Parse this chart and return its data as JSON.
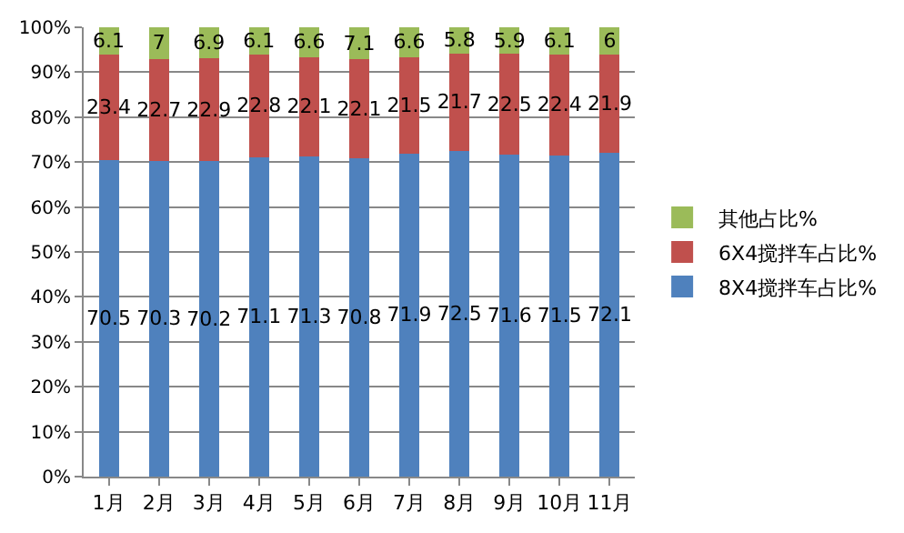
{
  "chart_data": {
    "type": "bar",
    "stacked": true,
    "categories": [
      "1月",
      "2月",
      "3月",
      "4月",
      "5月",
      "6月",
      "7月",
      "8月",
      "9月",
      "10月",
      "11月"
    ],
    "series": [
      {
        "name": "8X4搅拌车占比%",
        "color": "#4f81bd",
        "values": [
          70.5,
          70.3,
          70.2,
          71.1,
          71.3,
          70.8,
          71.9,
          72.5,
          71.6,
          71.5,
          72.1
        ]
      },
      {
        "name": "6X4搅拌车占比%",
        "color": "#c0504d",
        "values": [
          23.4,
          22.7,
          22.9,
          22.8,
          22.1,
          22.1,
          21.5,
          21.7,
          22.5,
          22.4,
          21.9
        ]
      },
      {
        "name": "其他占比%",
        "color": "#9bbb59",
        "values": [
          6.1,
          7,
          6.9,
          6.1,
          6.6,
          7.1,
          6.6,
          5.8,
          5.9,
          6.1,
          6
        ]
      }
    ],
    "ylim": [
      0,
      100
    ],
    "yticks": [
      {
        "value": 0,
        "label": "0%"
      },
      {
        "value": 10,
        "label": "10%"
      },
      {
        "value": 20,
        "label": "20%"
      },
      {
        "value": 30,
        "label": "30%"
      },
      {
        "value": 40,
        "label": "40%"
      },
      {
        "value": 50,
        "label": "50%"
      },
      {
        "value": 60,
        "label": "60%"
      },
      {
        "value": 70,
        "label": "70%"
      },
      {
        "value": 80,
        "label": "80%"
      },
      {
        "value": 90,
        "label": "90%"
      },
      {
        "value": 100,
        "label": "100%"
      }
    ],
    "grid": "y",
    "legend": "right",
    "data_labels": true
  }
}
